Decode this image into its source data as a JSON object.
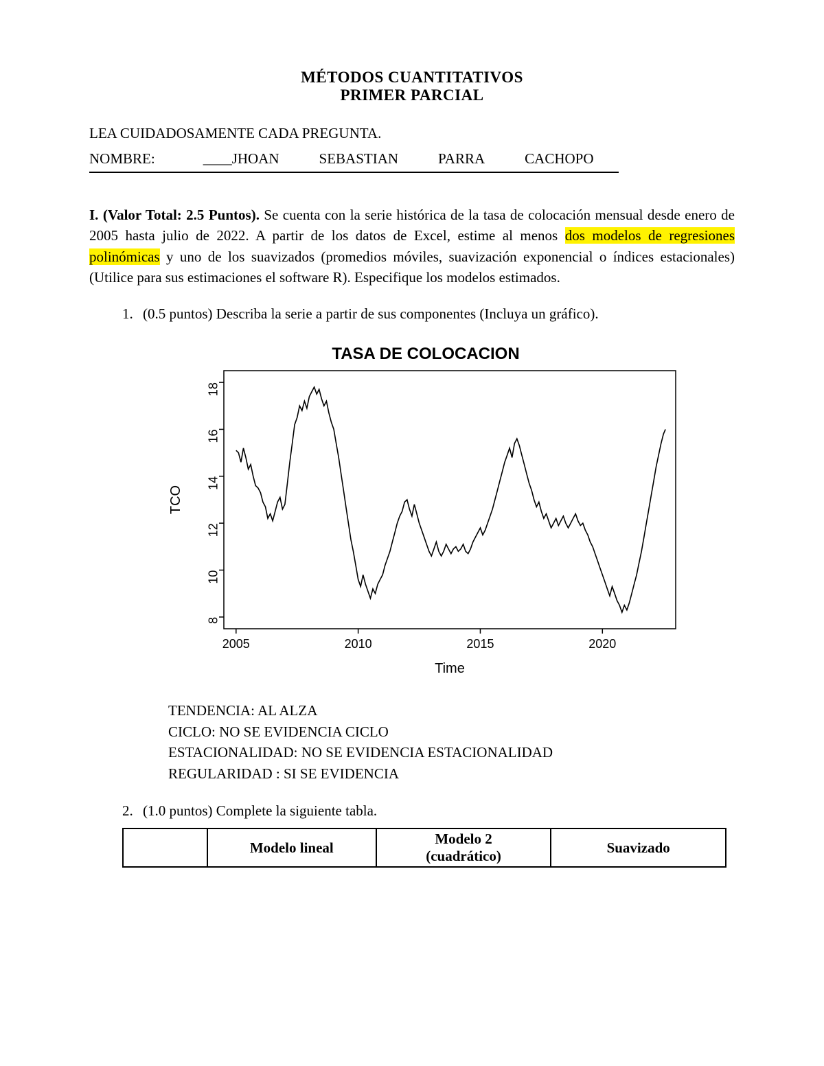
{
  "title": {
    "line1": "MÉTODOS CUANTITATIVOS",
    "line2": "PRIMER PARCIAL"
  },
  "instruction": "LEA CUIDADOSAMENTE CADA PREGUNTA.",
  "name_row": {
    "label": "NOMBRE:",
    "underscore": "____",
    "n1": "JHOAN",
    "n2": "SEBASTIAN",
    "n3": "PARRA",
    "n4": "CACHOPO"
  },
  "section": {
    "lead_bold": "I. (Valor Total: 2.5 Puntos).",
    "text_pre_hl": " Se cuenta con la serie histórica de la tasa de colocación mensual desde enero de 2005 hasta julio de 2022. A partir de los datos de Excel, estime al menos ",
    "highlight": "dos modelos de regresiones polinómicas",
    "text_post_hl": " y uno de los suavizados (promedios móviles, suavización exponencial o índices estacionales) (Utilice para sus estimaciones el software R). Especifique los modelos estimados."
  },
  "q1": {
    "num": "1.",
    "text": "(0.5 puntos) Describa la serie a partir de sus componentes (Incluya un gráfico)."
  },
  "chart": {
    "title": "TASA DE COLOCACION",
    "ylabel": "TCO",
    "xlabel": "Time",
    "yticks": [
      8,
      10,
      12,
      14,
      16,
      18
    ],
    "xticks": [
      2005,
      2010,
      2015,
      2020
    ],
    "xlim": [
      2004.5,
      2023
    ],
    "ylim": [
      7.5,
      18.5
    ],
    "line_color": "#000000",
    "axis_color": "#000000",
    "tick_font": "sans-serif",
    "tick_fontsize": 18,
    "label_fontsize": 20,
    "series": [
      [
        2005.0,
        15.1
      ],
      [
        2005.1,
        15.0
      ],
      [
        2005.2,
        14.6
      ],
      [
        2005.3,
        15.2
      ],
      [
        2005.4,
        14.8
      ],
      [
        2005.5,
        14.3
      ],
      [
        2005.6,
        14.5
      ],
      [
        2005.7,
        14.0
      ],
      [
        2005.8,
        13.6
      ],
      [
        2005.9,
        13.5
      ],
      [
        2006.0,
        13.3
      ],
      [
        2006.1,
        12.9
      ],
      [
        2006.2,
        12.7
      ],
      [
        2006.3,
        12.2
      ],
      [
        2006.4,
        12.4
      ],
      [
        2006.5,
        12.1
      ],
      [
        2006.6,
        12.5
      ],
      [
        2006.7,
        12.9
      ],
      [
        2006.8,
        13.1
      ],
      [
        2006.9,
        12.6
      ],
      [
        2007.0,
        12.8
      ],
      [
        2007.1,
        13.7
      ],
      [
        2007.2,
        14.6
      ],
      [
        2007.3,
        15.4
      ],
      [
        2007.4,
        16.2
      ],
      [
        2007.5,
        16.5
      ],
      [
        2007.6,
        17.0
      ],
      [
        2007.7,
        16.8
      ],
      [
        2007.8,
        17.2
      ],
      [
        2007.9,
        16.9
      ],
      [
        2008.0,
        17.4
      ],
      [
        2008.1,
        17.6
      ],
      [
        2008.2,
        17.8
      ],
      [
        2008.3,
        17.5
      ],
      [
        2008.4,
        17.7
      ],
      [
        2008.5,
        17.3
      ],
      [
        2008.6,
        17.0
      ],
      [
        2008.7,
        17.2
      ],
      [
        2008.8,
        16.7
      ],
      [
        2008.9,
        16.3
      ],
      [
        2009.0,
        16.0
      ],
      [
        2009.1,
        15.4
      ],
      [
        2009.2,
        14.8
      ],
      [
        2009.3,
        14.1
      ],
      [
        2009.4,
        13.4
      ],
      [
        2009.5,
        12.7
      ],
      [
        2009.6,
        12.0
      ],
      [
        2009.7,
        11.3
      ],
      [
        2009.8,
        10.8
      ],
      [
        2009.9,
        10.2
      ],
      [
        2010.0,
        9.6
      ],
      [
        2010.1,
        9.3
      ],
      [
        2010.2,
        9.8
      ],
      [
        2010.3,
        9.4
      ],
      [
        2010.4,
        9.1
      ],
      [
        2010.5,
        8.8
      ],
      [
        2010.6,
        9.2
      ],
      [
        2010.7,
        9.0
      ],
      [
        2010.8,
        9.4
      ],
      [
        2010.9,
        9.6
      ],
      [
        2011.0,
        9.8
      ],
      [
        2011.1,
        10.2
      ],
      [
        2011.2,
        10.5
      ],
      [
        2011.3,
        10.8
      ],
      [
        2011.4,
        11.2
      ],
      [
        2011.5,
        11.6
      ],
      [
        2011.6,
        12.0
      ],
      [
        2011.7,
        12.3
      ],
      [
        2011.8,
        12.5
      ],
      [
        2011.9,
        12.9
      ],
      [
        2012.0,
        13.0
      ],
      [
        2012.1,
        12.6
      ],
      [
        2012.2,
        12.3
      ],
      [
        2012.3,
        12.8
      ],
      [
        2012.4,
        12.4
      ],
      [
        2012.5,
        12.0
      ],
      [
        2012.6,
        11.7
      ],
      [
        2012.7,
        11.4
      ],
      [
        2012.8,
        11.1
      ],
      [
        2012.9,
        10.8
      ],
      [
        2013.0,
        10.6
      ],
      [
        2013.1,
        10.9
      ],
      [
        2013.2,
        11.2
      ],
      [
        2013.3,
        10.8
      ],
      [
        2013.4,
        10.6
      ],
      [
        2013.5,
        10.8
      ],
      [
        2013.6,
        11.1
      ],
      [
        2013.7,
        10.9
      ],
      [
        2013.8,
        10.7
      ],
      [
        2013.9,
        10.9
      ],
      [
        2014.0,
        11.0
      ],
      [
        2014.1,
        10.8
      ],
      [
        2014.2,
        10.9
      ],
      [
        2014.3,
        11.1
      ],
      [
        2014.4,
        10.8
      ],
      [
        2014.5,
        10.7
      ],
      [
        2014.6,
        10.9
      ],
      [
        2014.7,
        11.2
      ],
      [
        2014.8,
        11.4
      ],
      [
        2014.9,
        11.6
      ],
      [
        2015.0,
        11.8
      ],
      [
        2015.1,
        11.5
      ],
      [
        2015.2,
        11.7
      ],
      [
        2015.3,
        12.0
      ],
      [
        2015.4,
        12.3
      ],
      [
        2015.5,
        12.6
      ],
      [
        2015.6,
        13.0
      ],
      [
        2015.7,
        13.4
      ],
      [
        2015.8,
        13.8
      ],
      [
        2015.9,
        14.2
      ],
      [
        2016.0,
        14.6
      ],
      [
        2016.1,
        14.9
      ],
      [
        2016.2,
        15.2
      ],
      [
        2016.3,
        14.8
      ],
      [
        2016.4,
        15.4
      ],
      [
        2016.5,
        15.6
      ],
      [
        2016.6,
        15.3
      ],
      [
        2016.7,
        14.9
      ],
      [
        2016.8,
        14.5
      ],
      [
        2016.9,
        14.1
      ],
      [
        2017.0,
        13.7
      ],
      [
        2017.1,
        13.4
      ],
      [
        2017.2,
        13.0
      ],
      [
        2017.3,
        12.7
      ],
      [
        2017.4,
        12.9
      ],
      [
        2017.5,
        12.5
      ],
      [
        2017.6,
        12.2
      ],
      [
        2017.7,
        12.4
      ],
      [
        2017.8,
        12.1
      ],
      [
        2017.9,
        11.8
      ],
      [
        2018.0,
        12.0
      ],
      [
        2018.1,
        12.2
      ],
      [
        2018.2,
        11.9
      ],
      [
        2018.3,
        12.1
      ],
      [
        2018.4,
        12.3
      ],
      [
        2018.5,
        12.0
      ],
      [
        2018.6,
        11.8
      ],
      [
        2018.7,
        12.0
      ],
      [
        2018.8,
        12.2
      ],
      [
        2018.9,
        12.4
      ],
      [
        2019.0,
        12.1
      ],
      [
        2019.1,
        11.9
      ],
      [
        2019.2,
        12.0
      ],
      [
        2019.3,
        11.7
      ],
      [
        2019.4,
        11.5
      ],
      [
        2019.5,
        11.2
      ],
      [
        2019.6,
        11.0
      ],
      [
        2019.7,
        10.7
      ],
      [
        2019.8,
        10.4
      ],
      [
        2019.9,
        10.1
      ],
      [
        2020.0,
        9.8
      ],
      [
        2020.1,
        9.5
      ],
      [
        2020.2,
        9.2
      ],
      [
        2020.3,
        8.9
      ],
      [
        2020.4,
        9.3
      ],
      [
        2020.5,
        9.0
      ],
      [
        2020.6,
        8.7
      ],
      [
        2020.7,
        8.5
      ],
      [
        2020.8,
        8.2
      ],
      [
        2020.9,
        8.5
      ],
      [
        2021.0,
        8.3
      ],
      [
        2021.1,
        8.6
      ],
      [
        2021.2,
        9.0
      ],
      [
        2021.3,
        9.4
      ],
      [
        2021.4,
        9.8
      ],
      [
        2021.5,
        10.3
      ],
      [
        2021.6,
        10.8
      ],
      [
        2021.7,
        11.4
      ],
      [
        2021.8,
        12.0
      ],
      [
        2021.9,
        12.6
      ],
      [
        2022.0,
        13.2
      ],
      [
        2022.1,
        13.8
      ],
      [
        2022.2,
        14.4
      ],
      [
        2022.3,
        14.9
      ],
      [
        2022.4,
        15.4
      ],
      [
        2022.5,
        15.8
      ],
      [
        2022.58,
        16.0
      ]
    ]
  },
  "analysis": {
    "l1": "TENDENCIA: AL ALZA",
    "l2": "CICLO: NO SE EVIDENCIA CICLO",
    "l3": "ESTACIONALIDAD: NO SE EVIDENCIA ESTACIONALIDAD",
    "l4": "REGULARIDAD : SI SE EVIDENCIA"
  },
  "q2": {
    "num": "2.",
    "text": "(1.0 puntos) Complete la siguiente tabla."
  },
  "table": {
    "h1": "Modelo lineal",
    "h2a": "Modelo 2",
    "h2b": "(cuadrático)",
    "h3": "Suavizado"
  }
}
